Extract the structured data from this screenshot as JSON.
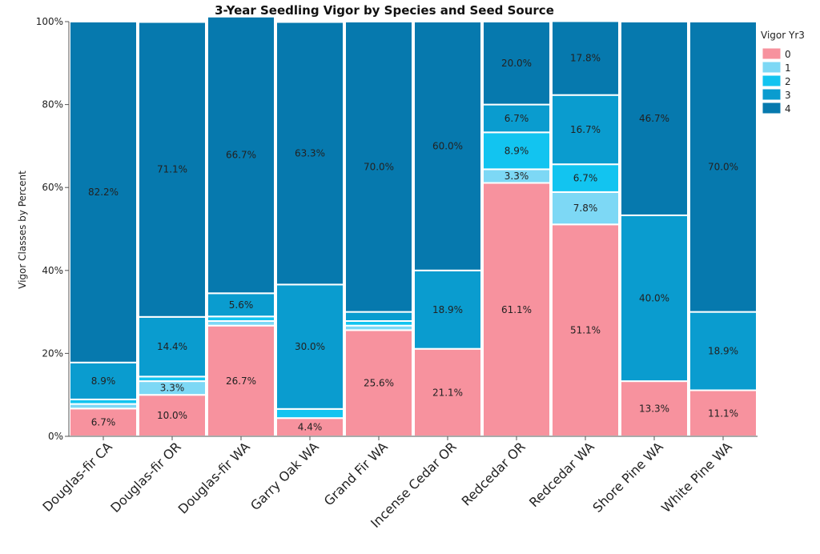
{
  "chart_data": {
    "type": "bar",
    "stacked": true,
    "normalized": true,
    "title": "3-Year Seedling Vigor by Species and Seed Source",
    "ylabel": "Vigor Classes by Percent",
    "xlabel": "",
    "ylim": [
      0,
      100
    ],
    "y_tick_labels": [
      "0%",
      "20%",
      "40%",
      "60%",
      "80%",
      "100%"
    ],
    "legend": {
      "title": "Vigor Yr3",
      "placement": "right",
      "entries": [
        "0",
        "1",
        "2",
        "3",
        "4"
      ]
    },
    "colors": {
      "0": "#f7929e",
      "1": "#7dd8f5",
      "2": "#12c4f0",
      "3": "#0a9ccf",
      "4": "#0679ae"
    },
    "categories": [
      "Douglas-fir CA",
      "Douglas-fir OR",
      "Douglas-fir WA",
      "Garry Oak WA",
      "Grand Fir WA",
      "Incense Cedar OR",
      "Redcedar OR",
      "Redcedar WA",
      "Shore Pine WA",
      "White Pine WA"
    ],
    "series": [
      {
        "name": "0",
        "values": [
          6.7,
          10.0,
          26.7,
          4.4,
          25.6,
          21.1,
          61.1,
          51.1,
          13.3,
          11.1
        ]
      },
      {
        "name": "1",
        "values": [
          1.1,
          3.3,
          1.1,
          0.0,
          1.1,
          0.0,
          3.3,
          7.8,
          0.0,
          0.0
        ]
      },
      {
        "name": "2",
        "values": [
          1.1,
          1.1,
          1.1,
          2.2,
          1.1,
          0.0,
          8.9,
          6.7,
          0.0,
          0.0
        ]
      },
      {
        "name": "3",
        "values": [
          8.9,
          14.4,
          5.6,
          30.0,
          2.2,
          18.9,
          6.7,
          16.7,
          40.0,
          18.9
        ]
      },
      {
        "name": "4",
        "values": [
          82.2,
          71.1,
          66.7,
          63.3,
          70.0,
          60.0,
          20.0,
          17.8,
          46.7,
          70.0
        ]
      }
    ],
    "data_labels": [
      [
        "6.7%",
        "",
        "",
        "8.9%",
        "82.2%"
      ],
      [
        "10.0%",
        "3.3%",
        "",
        "14.4%",
        "71.1%"
      ],
      [
        "26.7%",
        "",
        "",
        "5.6%",
        "66.7%"
      ],
      [
        "4.4%",
        "",
        "",
        "30.0%",
        "63.3%"
      ],
      [
        "25.6%",
        "",
        "",
        "",
        "70.0%"
      ],
      [
        "21.1%",
        "",
        "",
        "18.9%",
        "60.0%"
      ],
      [
        "61.1%",
        "3.3%",
        "8.9%",
        "6.7%",
        "20.0%"
      ],
      [
        "51.1%",
        "7.8%",
        "6.7%",
        "16.7%",
        "17.8%"
      ],
      [
        "13.3%",
        "",
        "",
        "40.0%",
        "46.7%"
      ],
      [
        "11.1%",
        "",
        "",
        "18.9%",
        "70.0%"
      ]
    ]
  }
}
